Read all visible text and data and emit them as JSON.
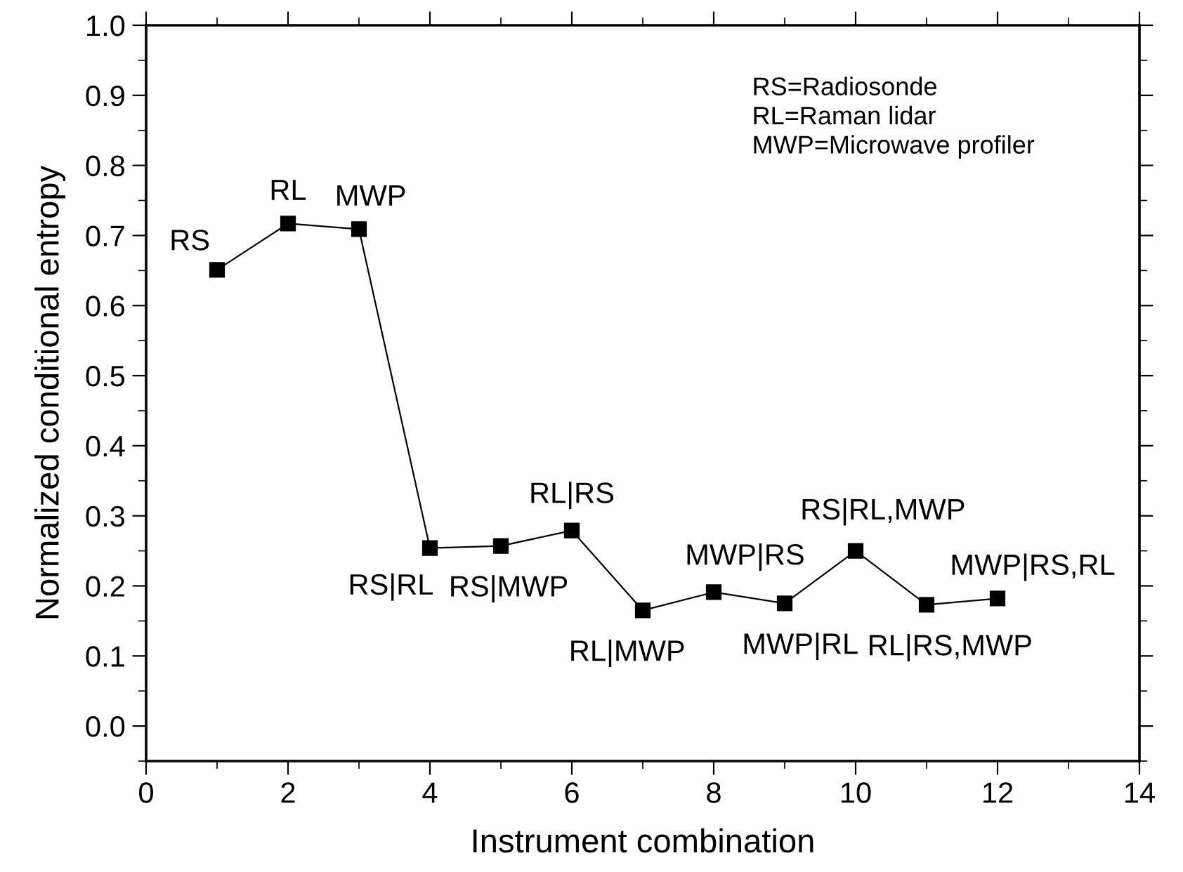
{
  "chart_data": {
    "type": "line",
    "xlabel": "Instrument combination",
    "ylabel": "Normalized conditional entropy",
    "x": [
      1,
      2,
      3,
      4,
      5,
      6,
      7,
      8,
      9,
      10,
      11,
      12
    ],
    "series": [
      {
        "color": "#000000",
        "values": [
          0.651,
          0.717,
          0.709,
          0.254,
          0.257,
          0.279,
          0.165,
          0.191,
          0.175,
          0.25,
          0.173,
          0.182
        ]
      }
    ],
    "xlim": [
      0,
      14
    ],
    "xticks": [
      0,
      2,
      4,
      6,
      8,
      10,
      12,
      14
    ],
    "ylim": [
      -0.05,
      1.0
    ],
    "yticks": [
      {
        "value": 0,
        "label": "0.0"
      },
      0.1,
      0.2,
      0.3,
      0.4,
      0.5,
      0.6,
      0.7,
      0.8,
      0.9,
      {
        "value": 1,
        "label": "1.0"
      }
    ],
    "marker": "square",
    "line_style": "solid",
    "grid": false,
    "legend": false,
    "annotations": [
      "RS=Radiosonde\nRL=Raman lidar\nMWP=Microwave profiler",
      {
        "text": "RS",
        "x": 1,
        "y": 0.651
      },
      {
        "text": "RL",
        "x": 2,
        "y": 0.717
      },
      {
        "text": "MWP",
        "x": 3,
        "y": 0.709
      },
      {
        "text": "RS|RL",
        "x": 4,
        "y": 0.254
      },
      {
        "text": "RS|MWP",
        "x": 5,
        "y": 0.257
      },
      {
        "text": "RL|RS",
        "x": 6,
        "y": 0.279
      },
      {
        "text": "RL|MWP",
        "x": 7,
        "y": 0.165
      },
      {
        "text": "MWP|RS",
        "x": 8,
        "y": 0.191
      },
      {
        "text": "MWP|RL",
        "x": 9,
        "y": 0.175
      },
      {
        "text": "RS|RL,MWP",
        "x": 10,
        "y": 0.25
      },
      {
        "text": "RL|RS,MWP",
        "x": 11,
        "y": 0.173
      },
      {
        "text": "MWP|RS,RL",
        "x": 12,
        "y": 0.182
      }
    ]
  }
}
